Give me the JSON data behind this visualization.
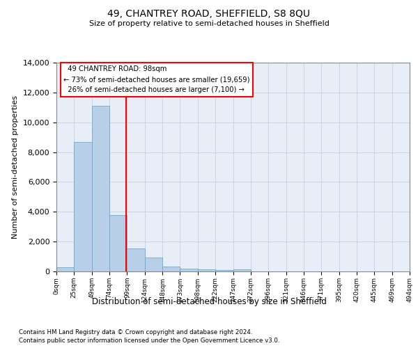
{
  "title": "49, CHANTREY ROAD, SHEFFIELD, S8 8QU",
  "subtitle": "Size of property relative to semi-detached houses in Sheffield",
  "xlabel": "Distribution of semi-detached houses by size in Sheffield",
  "ylabel": "Number of semi-detached properties",
  "footnote1": "Contains HM Land Registry data © Crown copyright and database right 2024.",
  "footnote2": "Contains public sector information licensed under the Open Government Licence v3.0.",
  "property_label": "49 CHANTREY ROAD: 98sqm",
  "pct_smaller": 73,
  "pct_smaller_n": "19,659",
  "pct_larger": 26,
  "pct_larger_n": "7,100",
  "bins": [
    0,
    25,
    50,
    75,
    100,
    125,
    150,
    175,
    200,
    225,
    250,
    275,
    300,
    325,
    350,
    375,
    400,
    425,
    450,
    475,
    500
  ],
  "bin_labels": [
    "0sqm",
    "25sqm",
    "49sqm",
    "74sqm",
    "99sqm",
    "124sqm",
    "148sqm",
    "173sqm",
    "198sqm",
    "222sqm",
    "247sqm",
    "272sqm",
    "296sqm",
    "321sqm",
    "346sqm",
    "371sqm",
    "395sqm",
    "420sqm",
    "445sqm",
    "469sqm",
    "494sqm"
  ],
  "counts": [
    300,
    8700,
    11100,
    3800,
    1550,
    950,
    350,
    200,
    130,
    100,
    130,
    0,
    0,
    0,
    0,
    0,
    0,
    0,
    0,
    0
  ],
  "bar_color": "#b8cfe8",
  "bar_edge_color": "#6aaad4",
  "red_line_x": 99,
  "grid_color": "#c8d4e8",
  "background_color": "#e8eef8",
  "ylim_max": 14000,
  "yticks": [
    0,
    2000,
    4000,
    6000,
    8000,
    10000,
    12000,
    14000
  ]
}
